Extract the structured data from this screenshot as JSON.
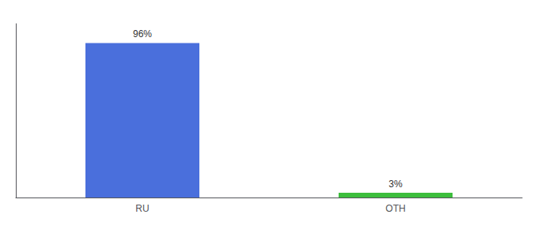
{
  "chart_data": {
    "type": "bar",
    "categories": [
      "RU",
      "OTH"
    ],
    "values": [
      96,
      3
    ],
    "value_labels": [
      "96%",
      "3%"
    ],
    "colors": [
      "#4a6fdc",
      "#3dbe3d"
    ],
    "ylim": [
      0,
      108
    ],
    "data_labels": true,
    "tick_labels": "x",
    "grid": false
  }
}
